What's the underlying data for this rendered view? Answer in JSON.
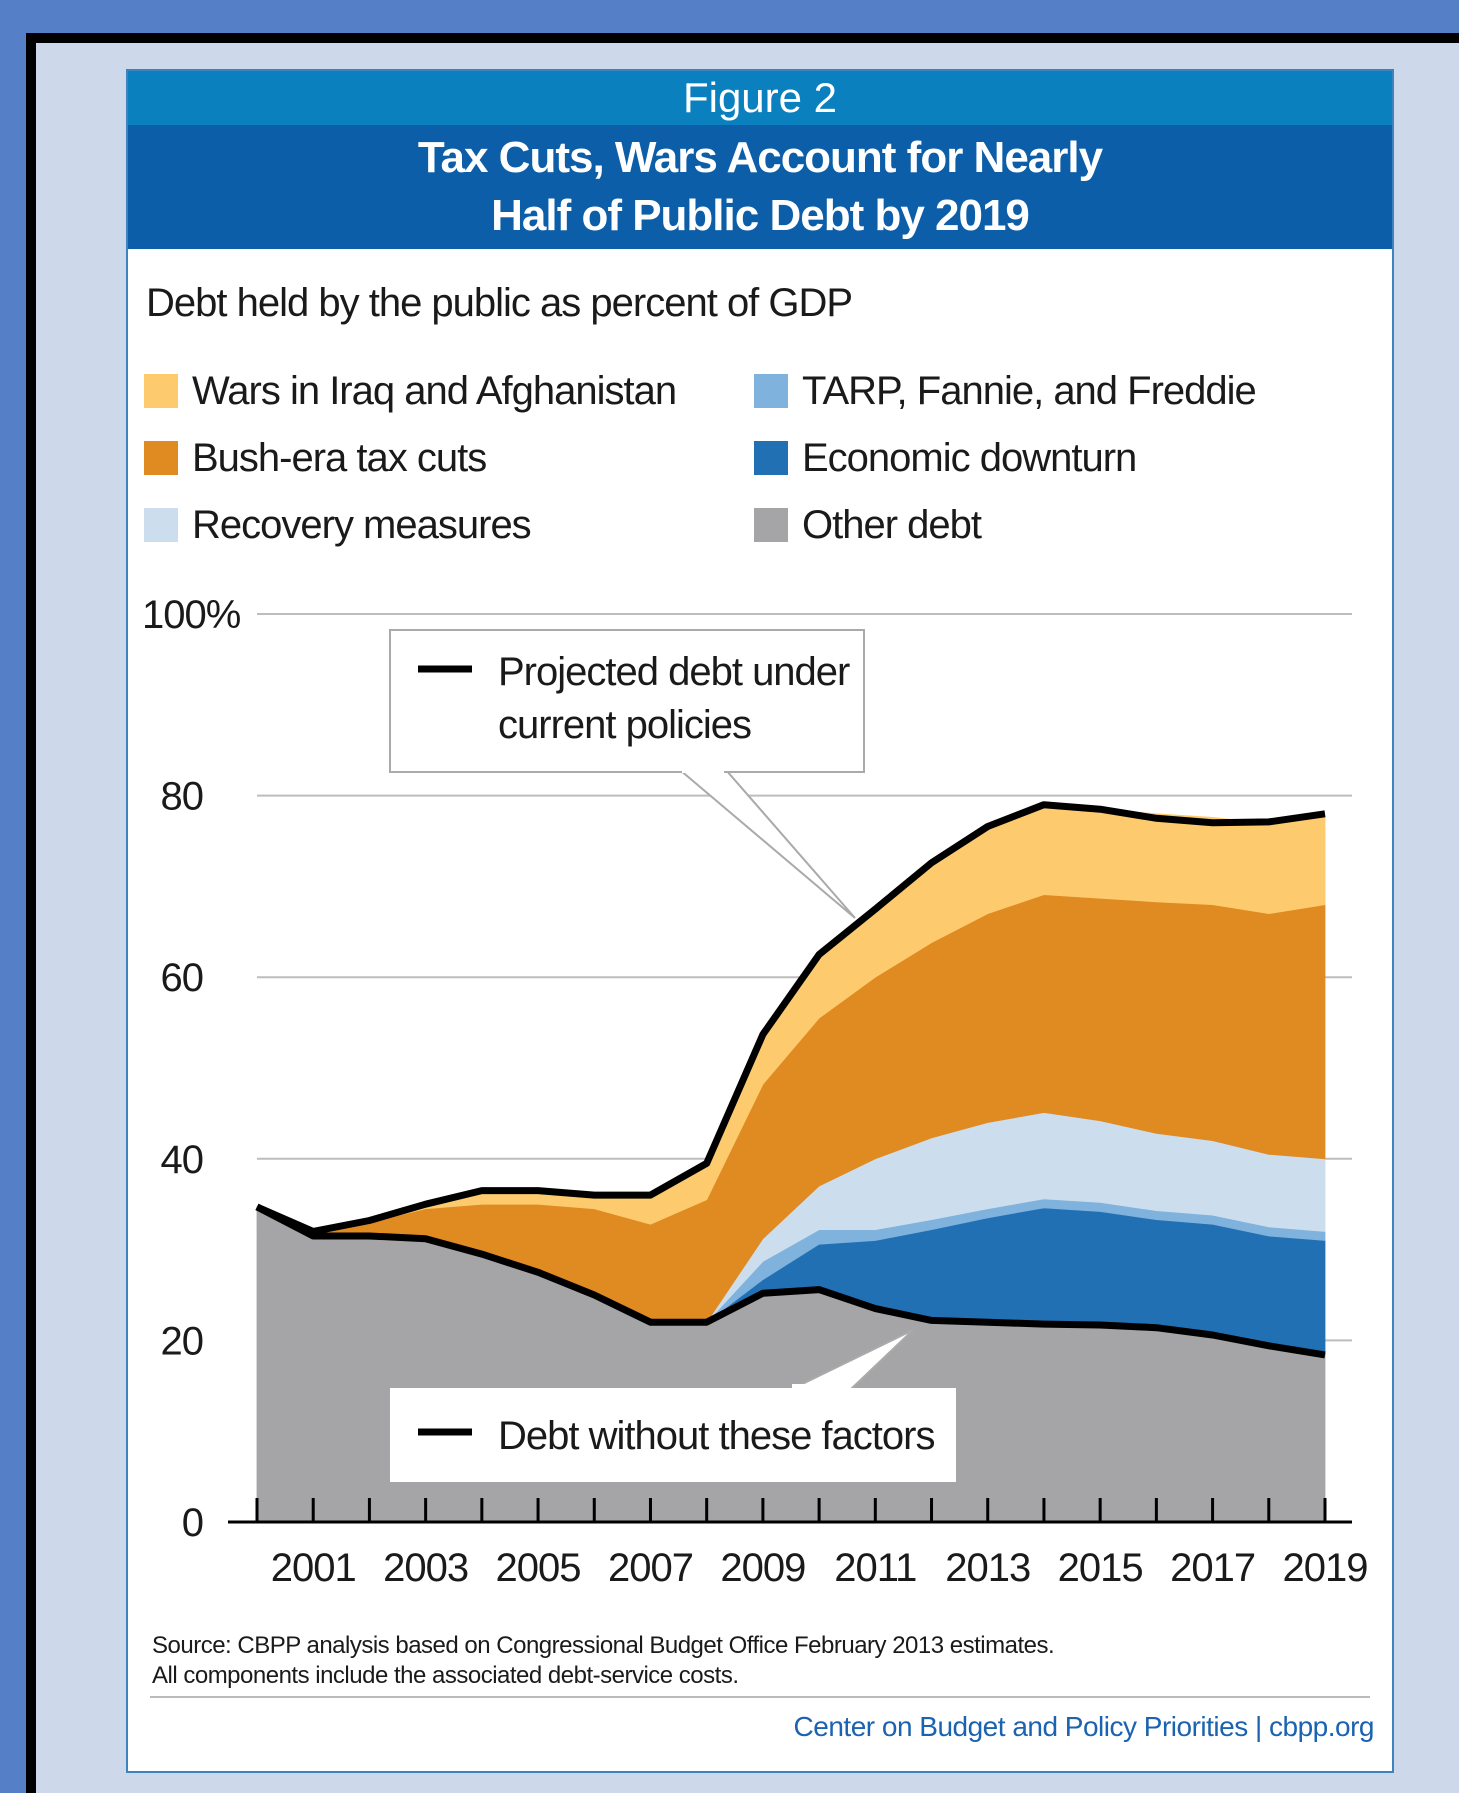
{
  "figure_label": "Figure 2",
  "title_line1": "Tax Cuts, Wars Account for Nearly",
  "title_line2": "Half of Public Debt by 2019",
  "subtitle": "Debt held by the public as percent of GDP",
  "legend": [
    {
      "label": "Wars in Iraq and Afghanistan",
      "color": "#fdcb6e"
    },
    {
      "label": "TARP, Fannie, and Freddie",
      "color": "#7fb2dc"
    },
    {
      "label": "Bush-era tax cuts",
      "color": "#e08a22"
    },
    {
      "label": "Economic downturn",
      "color": "#2270b4"
    },
    {
      "label": "Recovery measures",
      "color": "#ccdeee"
    },
    {
      "label": "Other debt",
      "color": "#a5a5a7"
    }
  ],
  "callouts": {
    "projected": {
      "line1": "Projected debt under",
      "line2": "current policies"
    },
    "without": {
      "label": "Debt without these factors"
    }
  },
  "source_line1": "Source: CBPP analysis based on Congressional Budget Office February 2013 estimates.",
  "source_line2": "All components include the associated debt-service costs.",
  "credit": "Center on Budget and Policy Priorities | cbpp.org",
  "chart_data": {
    "type": "area",
    "title": "Tax Cuts, Wars Account for Nearly Half of Public Debt by 2019",
    "subtitle": "Debt held by the public as percent of GDP",
    "x": [
      2000,
      2001,
      2002,
      2003,
      2004,
      2005,
      2006,
      2007,
      2008,
      2009,
      2010,
      2011,
      2012,
      2013,
      2014,
      2015,
      2016,
      2017,
      2018,
      2019
    ],
    "x_tick_labels": [
      "2001",
      "2003",
      "2005",
      "2007",
      "2009",
      "2011",
      "2013",
      "2015",
      "2017",
      "2019"
    ],
    "y_ticks": [
      0,
      20,
      40,
      60,
      80,
      100
    ],
    "y_tick_labels": [
      "0",
      "20",
      "40",
      "60",
      "80",
      "100%"
    ],
    "ylim": [
      0,
      100
    ],
    "xlim": [
      2000,
      2019
    ],
    "stacked": true,
    "series": [
      {
        "name": "Other debt",
        "color": "#a5a5a7",
        "values": [
          34.7,
          31.5,
          31.5,
          31.2,
          29.5,
          27.5,
          25.0,
          22.0,
          22.0,
          25.2,
          25.6,
          23.5,
          22.2,
          22.0,
          21.8,
          21.7,
          21.4,
          20.6,
          19.4,
          18.4
        ]
      },
      {
        "name": "Economic downturn",
        "color": "#2270b4",
        "values": [
          0,
          0,
          0,
          0,
          0,
          0,
          0,
          0,
          0,
          1.5,
          5.0,
          7.5,
          10.0,
          11.5,
          12.8,
          12.5,
          11.9,
          12.2,
          12.1,
          12.6
        ]
      },
      {
        "name": "TARP, Fannie, and Freddie",
        "color": "#7fb2dc",
        "values": [
          0,
          0,
          0,
          0,
          0,
          0,
          0,
          0,
          0,
          2.0,
          1.6,
          1.2,
          1.1,
          1.0,
          1.0,
          1.0,
          1.0,
          1.0,
          1.0,
          1.0
        ]
      },
      {
        "name": "Recovery measures",
        "color": "#ccdeee",
        "values": [
          0,
          0,
          0,
          0,
          0,
          0,
          0,
          0,
          0,
          2.5,
          4.8,
          7.8,
          9.0,
          9.5,
          9.5,
          9.0,
          8.5,
          8.2,
          8.0,
          8.0
        ]
      },
      {
        "name": "Bush-era tax cuts",
        "color": "#e08a22",
        "values": [
          0,
          0.5,
          1.5,
          3.3,
          5.5,
          7.5,
          9.5,
          10.8,
          13.5,
          17.0,
          18.5,
          20.0,
          21.5,
          23.0,
          24.0,
          24.5,
          25.5,
          26.0,
          26.5,
          28.0
        ]
      },
      {
        "name": "Wars in Iraq and Afghanistan",
        "color": "#fdcb6e",
        "values": [
          0,
          0,
          0.2,
          0.5,
          1.5,
          1.5,
          1.5,
          3.2,
          4.0,
          5.5,
          7.0,
          7.5,
          8.8,
          9.6,
          9.9,
          9.8,
          9.7,
          9.6,
          9.9,
          9.6
        ]
      }
    ],
    "lines": [
      {
        "name": "Projected debt under current policies",
        "values": [
          34.7,
          32.0,
          33.2,
          35.0,
          36.5,
          36.5,
          36.0,
          36.0,
          39.5,
          53.7,
          62.5,
          67.5,
          72.6,
          76.6,
          79.0,
          78.5,
          77.5,
          77.0,
          77.1,
          78.0
        ]
      },
      {
        "name": "Debt without these factors",
        "values": [
          34.7,
          31.5,
          31.5,
          31.2,
          29.5,
          27.5,
          25.0,
          22.0,
          22.0,
          25.2,
          25.6,
          23.5,
          22.2,
          22.0,
          21.8,
          21.7,
          21.4,
          20.6,
          19.4,
          18.4
        ]
      }
    ],
    "grid": true,
    "legend_position": "top"
  }
}
